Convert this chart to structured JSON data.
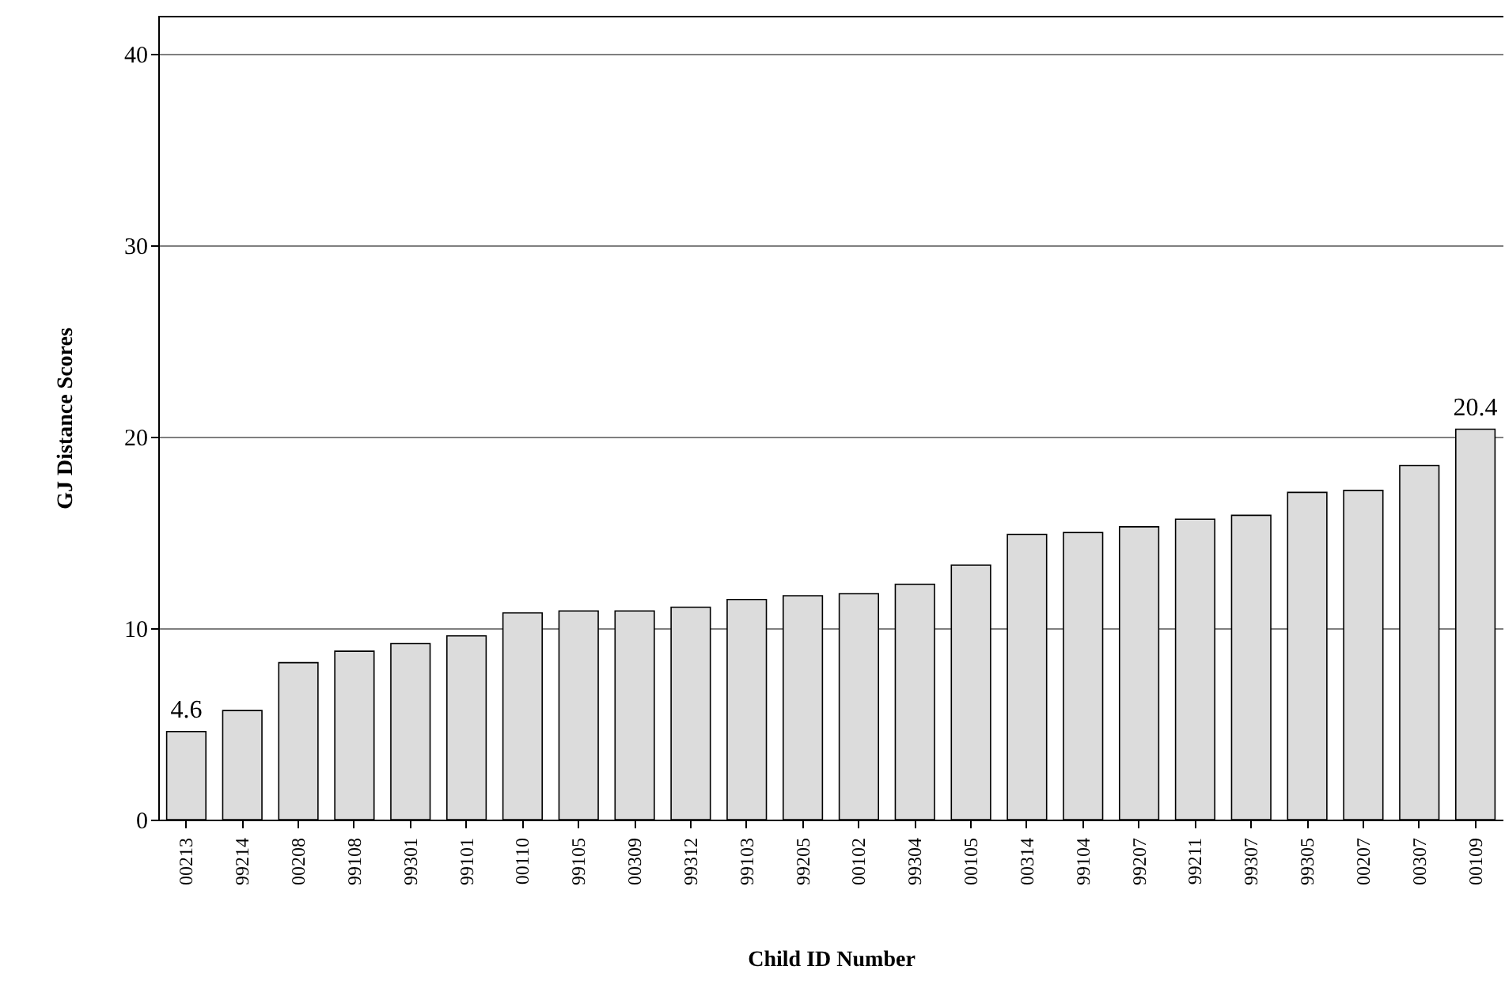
{
  "chart_data": {
    "type": "bar",
    "xlabel": "Child ID Number",
    "ylabel": "GJ Distance Scores",
    "categories": [
      "00213",
      "99214",
      "00208",
      "99108",
      "99301",
      "99101",
      "00110",
      "99105",
      "00309",
      "99312",
      "99103",
      "99205",
      "00102",
      "99304",
      "00105",
      "00314",
      "99104",
      "99207",
      "99211",
      "99307",
      "99305",
      "00207",
      "00307",
      "00109"
    ],
    "values": [
      4.6,
      5.7,
      8.2,
      8.8,
      9.2,
      9.6,
      10.8,
      10.9,
      10.9,
      11.1,
      11.5,
      11.7,
      11.8,
      12.3,
      13.3,
      14.9,
      15.0,
      15.3,
      15.7,
      15.9,
      17.1,
      17.2,
      18.5,
      20.4
    ],
    "value_labels": [
      "4.6",
      null,
      null,
      null,
      null,
      null,
      null,
      null,
      null,
      null,
      null,
      null,
      null,
      null,
      null,
      null,
      null,
      null,
      null,
      null,
      null,
      null,
      null,
      "20.4"
    ],
    "color": "#dcdcdc",
    "ylim": [
      0,
      42
    ],
    "yticks": [
      0,
      10,
      20,
      30,
      40
    ],
    "grid": "y"
  }
}
